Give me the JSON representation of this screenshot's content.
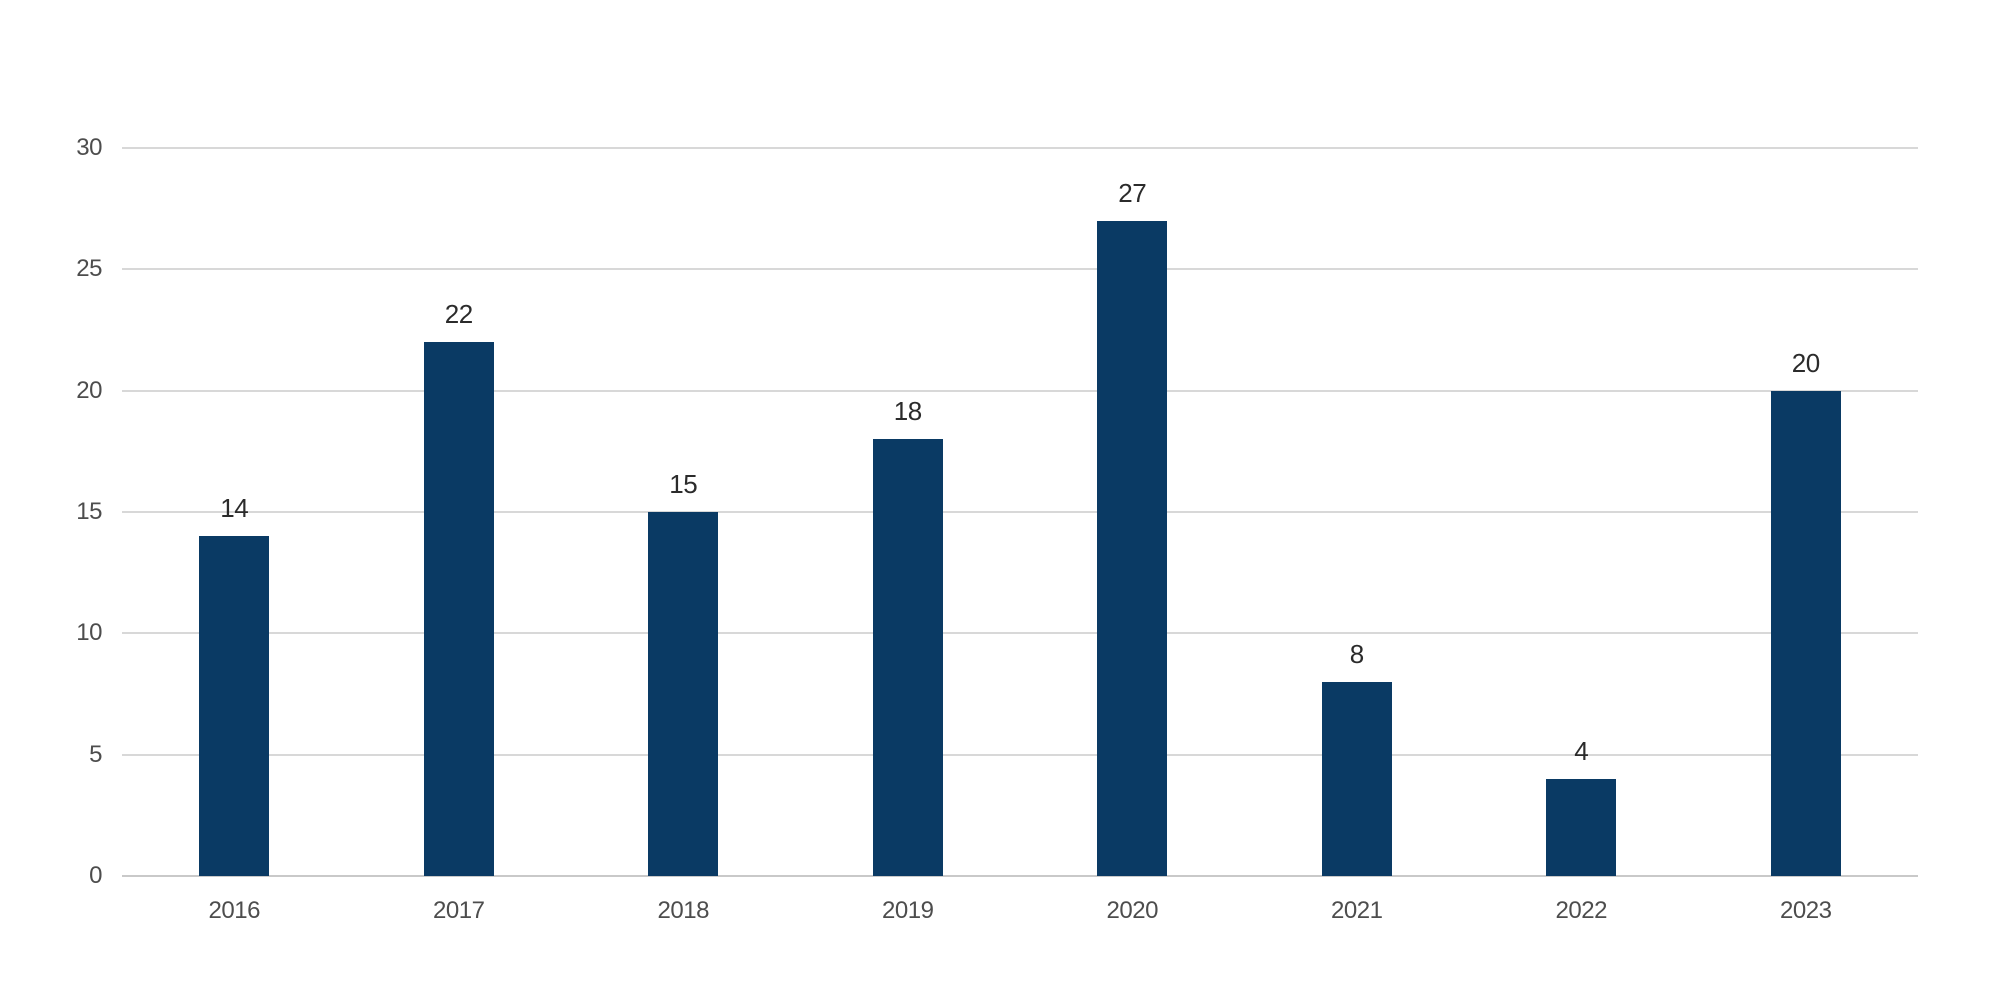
{
  "chart_data": {
    "type": "bar",
    "categories": [
      "2016",
      "2017",
      "2018",
      "2019",
      "2020",
      "2021",
      "2022",
      "2023"
    ],
    "values": [
      14,
      22,
      15,
      18,
      27,
      8,
      4,
      20
    ],
    "yticks": [
      0,
      5,
      10,
      15,
      20,
      25,
      30
    ],
    "ylim": [
      0,
      30
    ],
    "xlabel": "",
    "ylabel": "",
    "grid": true,
    "value_labels_shown": true,
    "legend_position": "none",
    "colors": {
      "bar": "#0a3a64",
      "gridline": "#d8d8d8",
      "axis_line": "#c9c9c9",
      "tick_label": "#4d4d4d",
      "value_label": "#2b2b2b",
      "background": "#ffffff"
    }
  }
}
